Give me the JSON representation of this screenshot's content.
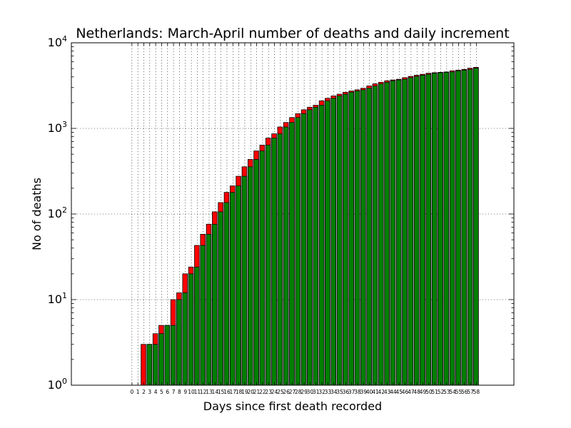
{
  "chart_data": {
    "type": "bar",
    "title": "Netherlands: March-April number of deaths and daily increment",
    "xlabel": "Days since first death recorded",
    "ylabel": "No of deaths",
    "yscale": "log",
    "ylim": [
      1,
      10000
    ],
    "grid": true,
    "colors": {
      "cumulative": "#008000",
      "increment": "#ff0000",
      "edge": "#000000"
    },
    "x": [
      0,
      1,
      2,
      3,
      4,
      5,
      6,
      7,
      8,
      9,
      10,
      11,
      12,
      13,
      14,
      15,
      16,
      17,
      18,
      19,
      20,
      21,
      22,
      23,
      24,
      25,
      26,
      27,
      28,
      29,
      30,
      31,
      32,
      33,
      34,
      35,
      36,
      37,
      38,
      39,
      40,
      41,
      42,
      43,
      44,
      45,
      46,
      47,
      48,
      49,
      50,
      51,
      52,
      53,
      54,
      55,
      56,
      57,
      58
    ],
    "x_tick_labels": [
      "0",
      "1",
      "2",
      "3",
      "4",
      "5",
      "6",
      "7",
      "8",
      "9",
      "10",
      "11",
      "12",
      "13",
      "14",
      "15",
      "16",
      "17",
      "18",
      "19",
      "20",
      "21",
      "22",
      "23",
      "24",
      "25",
      "26",
      "27",
      "28",
      "29",
      "30",
      "31",
      "32",
      "33",
      "34",
      "35",
      "36",
      "37",
      "38",
      "39",
      "40",
      "41",
      "42",
      "43",
      "44",
      "45",
      "46",
      "47",
      "48",
      "49",
      "50",
      "51",
      "52",
      "53",
      "54",
      "55",
      "56",
      "57",
      "58"
    ],
    "y_ticks": [
      {
        "base": "10",
        "exp": "0"
      },
      {
        "base": "10",
        "exp": "1"
      },
      {
        "base": "10",
        "exp": "2"
      },
      {
        "base": "10",
        "exp": "3"
      },
      {
        "base": "10",
        "exp": "4"
      }
    ],
    "series": [
      {
        "role": "increment",
        "values": [
          1,
          1,
          3,
          3,
          4,
          5,
          5,
          10,
          12,
          20,
          24,
          43,
          58,
          76,
          106,
          136,
          179,
          213,
          276,
          356,
          434,
          546,
          639,
          771,
          864,
          1039,
          1173,
          1339,
          1487,
          1651,
          1766,
          1867,
          2101,
          2248,
          2396,
          2511,
          2643,
          2737,
          2823,
          2945,
          3134,
          3315,
          3459,
          3601,
          3684,
          3751,
          3916,
          4054,
          4177,
          4289,
          4409,
          4475,
          4518,
          4566,
          4711,
          4795,
          4893,
          5056,
          5168
        ]
      },
      {
        "role": "cumulative",
        "values": [
          1,
          1,
          1,
          3,
          3,
          4,
          5,
          5,
          10,
          12,
          20,
          24,
          43,
          58,
          76,
          106,
          136,
          179,
          213,
          276,
          356,
          434,
          546,
          639,
          771,
          864,
          1039,
          1173,
          1339,
          1487,
          1651,
          1766,
          1867,
          2101,
          2248,
          2396,
          2511,
          2643,
          2737,
          2823,
          2945,
          3134,
          3315,
          3459,
          3601,
          3684,
          3751,
          3916,
          4054,
          4177,
          4289,
          4409,
          4475,
          4518,
          4566,
          4711,
          4795,
          4893,
          5056
        ]
      }
    ]
  }
}
